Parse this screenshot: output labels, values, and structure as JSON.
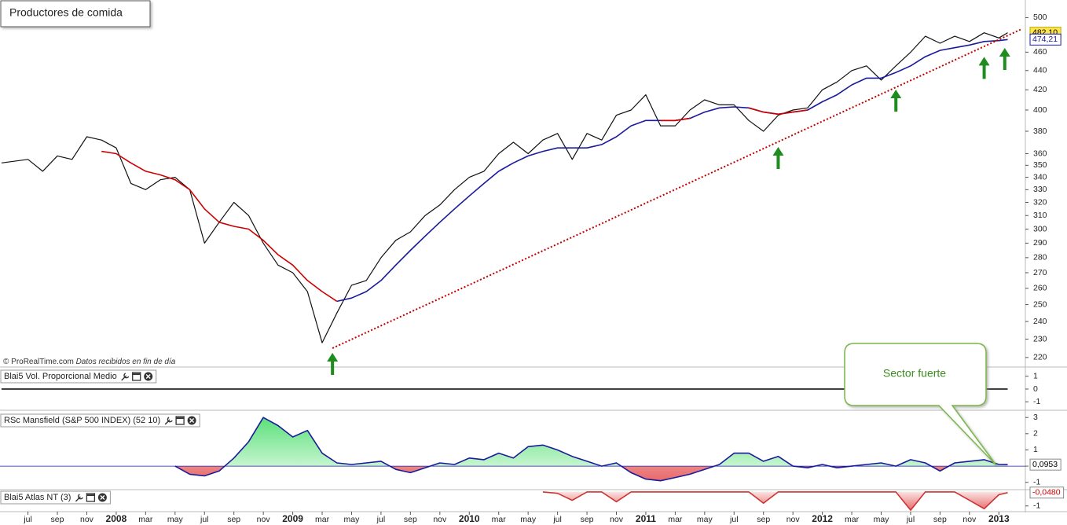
{
  "chart_data": [
    {
      "type": "line",
      "title": "Productores de comida",
      "source": "© ProRealTime.com",
      "note": "Datos recibidos en fin de día",
      "log_scale": true,
      "xlim": [
        -1.9,
        67.8
      ],
      "ylim": [
        215,
        510
      ],
      "yticks": [
        220,
        230,
        240,
        250,
        260,
        270,
        280,
        290,
        300,
        310,
        320,
        330,
        340,
        350,
        360,
        380,
        400,
        420,
        440,
        460,
        500
      ],
      "x": [
        -1.8,
        0,
        1,
        2,
        3,
        4,
        5,
        6,
        7,
        8,
        9,
        10,
        11,
        12,
        13,
        14,
        15,
        16,
        17,
        18,
        19,
        20,
        21,
        22,
        23,
        24,
        25,
        26,
        27,
        28,
        29,
        30,
        31,
        32,
        33,
        34,
        35,
        36,
        37,
        38,
        39,
        40,
        41,
        42,
        43,
        44,
        45,
        46,
        47,
        48,
        49,
        50,
        51,
        52,
        53,
        54,
        55,
        56,
        57,
        58,
        59,
        60,
        61,
        62,
        63,
        64,
        65,
        66,
        66.6
      ],
      "series": [
        {
          "color": "#111111",
          "values": [
            352,
            355,
            345,
            358,
            355,
            375,
            372,
            365,
            335,
            330,
            338,
            340,
            330,
            290,
            305,
            320,
            310,
            290,
            275,
            270,
            258,
            228,
            245,
            262,
            265,
            280,
            292,
            298,
            310,
            318,
            330,
            340,
            345,
            360,
            370,
            360,
            372,
            378,
            355,
            378,
            372,
            395,
            400,
            415,
            385,
            385,
            400,
            410,
            405,
            405,
            390,
            380,
            395,
            400,
            402,
            420,
            428,
            440,
            445,
            430,
            445,
            460,
            478,
            470,
            478,
            472,
            482,
            476,
            482.1
          ]
        },
        {
          "color": "#1a1a9c",
          "values": [
            null,
            null,
            null,
            null,
            null,
            null,
            null,
            null,
            null,
            null,
            null,
            null,
            null,
            null,
            null,
            null,
            null,
            null,
            null,
            null,
            null,
            null,
            252,
            254,
            258,
            265,
            275,
            285,
            295,
            305,
            315,
            325,
            335,
            345,
            352,
            358,
            362,
            365,
            365,
            365,
            368,
            375,
            385,
            390,
            390,
            390,
            392,
            398,
            402,
            403,
            402,
            398,
            396,
            398,
            400,
            408,
            415,
            425,
            432,
            432,
            438,
            445,
            455,
            462,
            465,
            468,
            472,
            473,
            474.21
          ]
        },
        {
          "color": "#cc0000",
          "values": [
            null,
            null,
            null,
            null,
            null,
            null,
            362,
            360,
            352,
            345,
            342,
            338,
            330,
            315,
            305,
            302,
            300,
            292,
            282,
            275,
            265,
            258,
            252,
            null,
            null,
            null,
            null,
            null,
            null,
            null,
            null,
            null,
            null,
            null,
            null,
            null,
            null,
            null,
            null,
            null,
            null,
            null,
            null,
            null,
            390,
            390,
            392,
            null,
            null,
            null,
            402,
            398,
            396,
            398,
            400,
            null,
            null,
            null,
            null,
            null,
            null,
            null,
            null,
            null,
            null,
            null,
            null,
            null,
            null
          ]
        }
      ],
      "trendline": {
        "x": [
          20.7,
          67.5
        ],
        "values": [
          225,
          486
        ],
        "color": "#c00000"
      },
      "arrows": {
        "x": [
          20.7,
          51,
          59,
          65,
          66.4
        ],
        "values": [
          225,
          370,
          425,
          460,
          470
        ],
        "color": "#1e8c1e"
      },
      "last_value": {
        "value": 482.1,
        "label": "482,10"
      },
      "ma_last_value": {
        "value": 474.21,
        "label": "474,21"
      }
    },
    {
      "type": "line",
      "title": "Blai5 Vol. Proporcional Medio",
      "xlim": [
        -1.9,
        67.8
      ],
      "ylim": [
        -1.6,
        1.6
      ],
      "yticks": [
        1,
        0,
        -1
      ],
      "x": [
        -1.8,
        66.6
      ],
      "series": [
        {
          "color": "#000000",
          "values": [
            0,
            0
          ]
        }
      ]
    },
    {
      "type": "area",
      "title": "RSc Mansfield (S&P 500 INDEX) (52 10)",
      "xlim": [
        -1.9,
        67.8
      ],
      "ylim": [
        -1.4,
        3.3
      ],
      "yticks": [
        3,
        2,
        1,
        0,
        -1
      ],
      "annotation": "Sector fuerte",
      "x": [
        -1.8,
        0,
        1,
        2,
        3,
        4,
        5,
        6,
        7,
        8,
        9,
        10,
        11,
        12,
        13,
        14,
        15,
        16,
        17,
        18,
        19,
        20,
        21,
        22,
        23,
        24,
        25,
        26,
        27,
        28,
        29,
        30,
        31,
        32,
        33,
        34,
        35,
        36,
        37,
        38,
        39,
        40,
        41,
        42,
        43,
        44,
        45,
        46,
        47,
        48,
        49,
        50,
        51,
        52,
        53,
        54,
        55,
        56,
        57,
        58,
        59,
        60,
        61,
        62,
        63,
        64,
        65,
        66,
        66.6
      ],
      "series": [
        {
          "color": "#1a1a9c",
          "values": [
            null,
            null,
            null,
            null,
            null,
            null,
            null,
            null,
            null,
            null,
            null,
            0,
            -0.5,
            -0.6,
            -0.3,
            0.5,
            1.5,
            3,
            2.5,
            1.8,
            2.2,
            0.8,
            0.2,
            0.1,
            0.2,
            0.3,
            -0.2,
            -0.4,
            -0.1,
            0.2,
            0.1,
            0.5,
            0.4,
            0.8,
            0.5,
            1.2,
            1.3,
            1.0,
            0.6,
            0.3,
            0,
            0.2,
            -0.4,
            -0.8,
            -0.9,
            -0.7,
            -0.5,
            -0.2,
            0.1,
            0.8,
            0.8,
            0.3,
            0.6,
            0,
            -0.1,
            0.1,
            -0.1,
            0,
            0.1,
            0.2,
            0,
            0.4,
            0.2,
            -0.3,
            0.2,
            0.3,
            0.4,
            0.1,
            0.0953
          ]
        }
      ],
      "last_value": {
        "value": 0.0953,
        "label": "0,0953"
      }
    },
    {
      "type": "area",
      "title": "Blai5 Atlas NT (3)",
      "xlim": [
        -1.9,
        67.8
      ],
      "ylim": [
        -1.35,
        0.05
      ],
      "yticks": [
        -1
      ],
      "x": [
        -1.8,
        0,
        1,
        2,
        3,
        4,
        5,
        6,
        7,
        8,
        9,
        10,
        11,
        12,
        13,
        14,
        15,
        16,
        17,
        18,
        19,
        20,
        21,
        22,
        23,
        24,
        25,
        26,
        27,
        28,
        29,
        30,
        31,
        32,
        33,
        34,
        35,
        36,
        37,
        38,
        39,
        40,
        41,
        42,
        43,
        44,
        45,
        46,
        47,
        48,
        49,
        50,
        51,
        52,
        53,
        54,
        55,
        56,
        57,
        58,
        59,
        60,
        61,
        62,
        63,
        64,
        65,
        66,
        66.6
      ],
      "series": [
        {
          "color": "#cc3333",
          "values": [
            null,
            null,
            null,
            null,
            null,
            null,
            null,
            null,
            null,
            null,
            null,
            null,
            null,
            null,
            null,
            null,
            null,
            null,
            null,
            null,
            null,
            null,
            null,
            null,
            null,
            null,
            null,
            null,
            null,
            null,
            null,
            null,
            null,
            null,
            null,
            null,
            0,
            -0.1,
            -0.6,
            0,
            0,
            -0.7,
            0,
            0,
            0,
            0,
            0,
            0,
            0,
            0,
            0,
            -0.8,
            0,
            0,
            0,
            0,
            0,
            0,
            0,
            0,
            0,
            -1.3,
            0,
            0,
            0,
            -0.6,
            -1.2,
            -0.2,
            -0.048
          ]
        }
      ],
      "last_value": {
        "value": -0.048,
        "label": "-0,0480"
      },
      "xticks": [
        {
          "value": 0,
          "label": "jul"
        },
        {
          "value": 2,
          "label": "sep"
        },
        {
          "value": 4,
          "label": "nov"
        },
        {
          "value": 6,
          "label": "2008"
        },
        {
          "value": 8,
          "label": "mar"
        },
        {
          "value": 10,
          "label": "may"
        },
        {
          "value": 12,
          "label": "jul"
        },
        {
          "value": 14,
          "label": "sep"
        },
        {
          "value": 16,
          "label": "nov"
        },
        {
          "value": 18,
          "label": "2009"
        },
        {
          "value": 20,
          "label": "mar"
        },
        {
          "value": 22,
          "label": "may"
        },
        {
          "value": 24,
          "label": "jul"
        },
        {
          "value": 26,
          "label": "sep"
        },
        {
          "value": 28,
          "label": "nov"
        },
        {
          "value": 30,
          "label": "2010"
        },
        {
          "value": 32,
          "label": "mar"
        },
        {
          "value": 34,
          "label": "may"
        },
        {
          "value": 36,
          "label": "jul"
        },
        {
          "value": 38,
          "label": "sep"
        },
        {
          "value": 40,
          "label": "nov"
        },
        {
          "value": 42,
          "label": "2011"
        },
        {
          "value": 44,
          "label": "mar"
        },
        {
          "value": 46,
          "label": "may"
        },
        {
          "value": 48,
          "label": "jul"
        },
        {
          "value": 50,
          "label": "sep"
        },
        {
          "value": 52,
          "label": "nov"
        },
        {
          "value": 54,
          "label": "2012"
        },
        {
          "value": 56,
          "label": "mar"
        },
        {
          "value": 58,
          "label": "may"
        },
        {
          "value": 60,
          "label": "jul"
        },
        {
          "value": 62,
          "label": "sep"
        },
        {
          "value": 64,
          "label": "nov"
        },
        {
          "value": 66,
          "label": "2013"
        }
      ]
    }
  ]
}
